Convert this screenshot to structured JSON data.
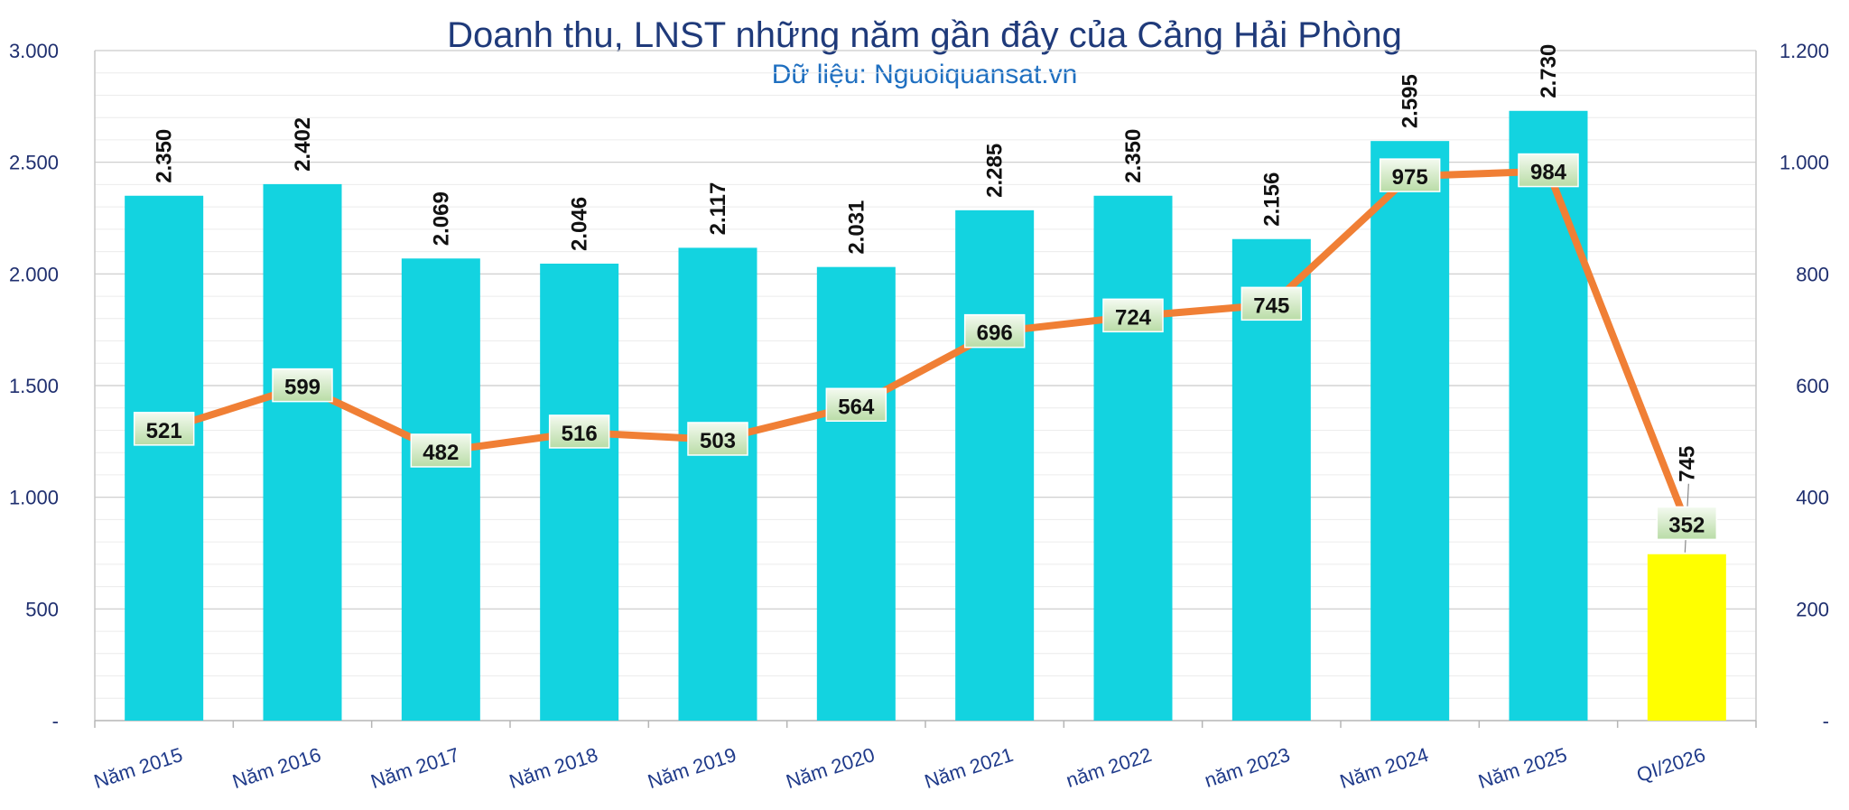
{
  "chart_data": {
    "type": "bar",
    "title": "Doanh thu, LNST những năm gần đây của Cảng Hải Phòng",
    "subtitle": "Dữ liệu: Nguoiquansat.vn",
    "categories": [
      "Năm 2015",
      "Năm 2016",
      "Năm 2017",
      "Năm 2018",
      "Năm 2019",
      "Năm 2020",
      "Năm 2021",
      "năm 2022",
      "năm 2023",
      "Năm 2024",
      "Năm 2025",
      "QI/2026"
    ],
    "bar_series": {
      "values": [
        2350,
        2402,
        2069,
        2046,
        2117,
        2031,
        2285,
        2350,
        2156,
        2595,
        2730,
        745
      ],
      "labels": [
        "2.350",
        "2.402",
        "2.069",
        "2.046",
        "2.117",
        "2.031",
        "2.285",
        "2.350",
        "2.156",
        "2.595",
        "2.730",
        "745"
      ],
      "color": "#13d3e0",
      "highlight_color": "#ffff00",
      "highlight_index": 11,
      "axis": "left"
    },
    "line_series": {
      "values": [
        521,
        599,
        482,
        516,
        503,
        564,
        696,
        724,
        745,
        975,
        984,
        352
      ],
      "labels": [
        "521",
        "599",
        "482",
        "516",
        "503",
        "564",
        "696",
        "724",
        "745",
        "975",
        "984",
        "352"
      ],
      "color": "#f07f35",
      "axis": "right"
    },
    "left_axis": {
      "ylim": [
        0,
        3000
      ],
      "ticks": [
        0,
        500,
        1000,
        1500,
        2000,
        2500,
        3000
      ],
      "tick_labels": [
        "-",
        "500",
        "1.000",
        "1.500",
        "2.000",
        "2.500",
        "3.000"
      ]
    },
    "right_axis": {
      "ylim": [
        0,
        1200
      ],
      "ticks": [
        0,
        200,
        400,
        600,
        800,
        1000,
        1200
      ],
      "tick_labels": [
        "-",
        "200",
        "400",
        "600",
        "800",
        "1.000",
        "1.200"
      ]
    },
    "grid": true
  }
}
